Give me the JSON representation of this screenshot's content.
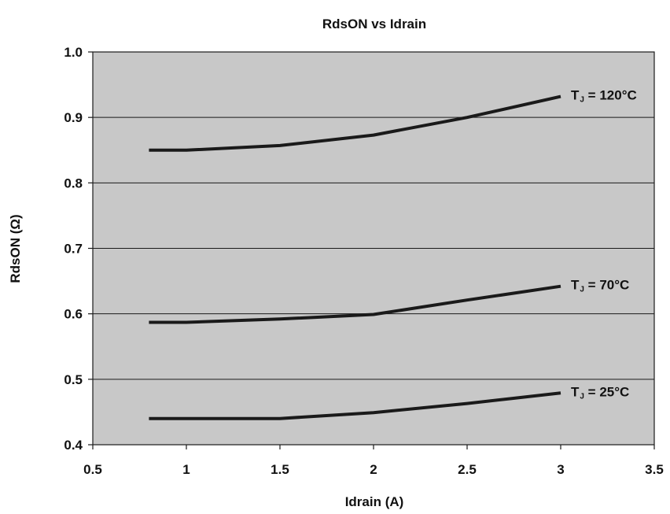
{
  "chart_data": {
    "type": "line",
    "title": "RdsON vs Idrain",
    "xlabel": "Idrain (A)",
    "ylabel": "RdsON (Ω)",
    "xlim": [
      0.5,
      3.5
    ],
    "ylim": [
      0.4,
      1.0
    ],
    "xticks": [
      "0.5",
      "1",
      "1.5",
      "2",
      "2.5",
      "3",
      "3.5"
    ],
    "yticks": [
      "0.4",
      "0.5",
      "0.6",
      "0.7",
      "0.8",
      "0.9",
      "1.0"
    ],
    "grid": "horizontal",
    "plot_background": "#c8c8c8",
    "line_color": "#1a1a1a",
    "series": [
      {
        "name": "TJ = 120°C",
        "label_main": "T",
        "label_sub": "J",
        "label_rest": " = 120°C",
        "x": [
          0.8,
          1.0,
          1.5,
          2.0,
          2.5,
          3.0
        ],
        "y": [
          0.85,
          0.85,
          0.857,
          0.873,
          0.9,
          0.932
        ]
      },
      {
        "name": "TJ = 70°C",
        "label_main": "T",
        "label_sub": "J",
        "label_rest": " = 70°C",
        "x": [
          0.8,
          1.0,
          1.5,
          2.0,
          2.5,
          3.0
        ],
        "y": [
          0.587,
          0.587,
          0.592,
          0.599,
          0.621,
          0.642
        ]
      },
      {
        "name": "TJ = 25°C",
        "label_main": "T",
        "label_sub": "J",
        "label_rest": " = 25°C",
        "x": [
          0.8,
          1.0,
          1.5,
          2.0,
          2.5,
          3.0
        ],
        "y": [
          0.44,
          0.44,
          0.44,
          0.449,
          0.463,
          0.479
        ]
      }
    ]
  }
}
